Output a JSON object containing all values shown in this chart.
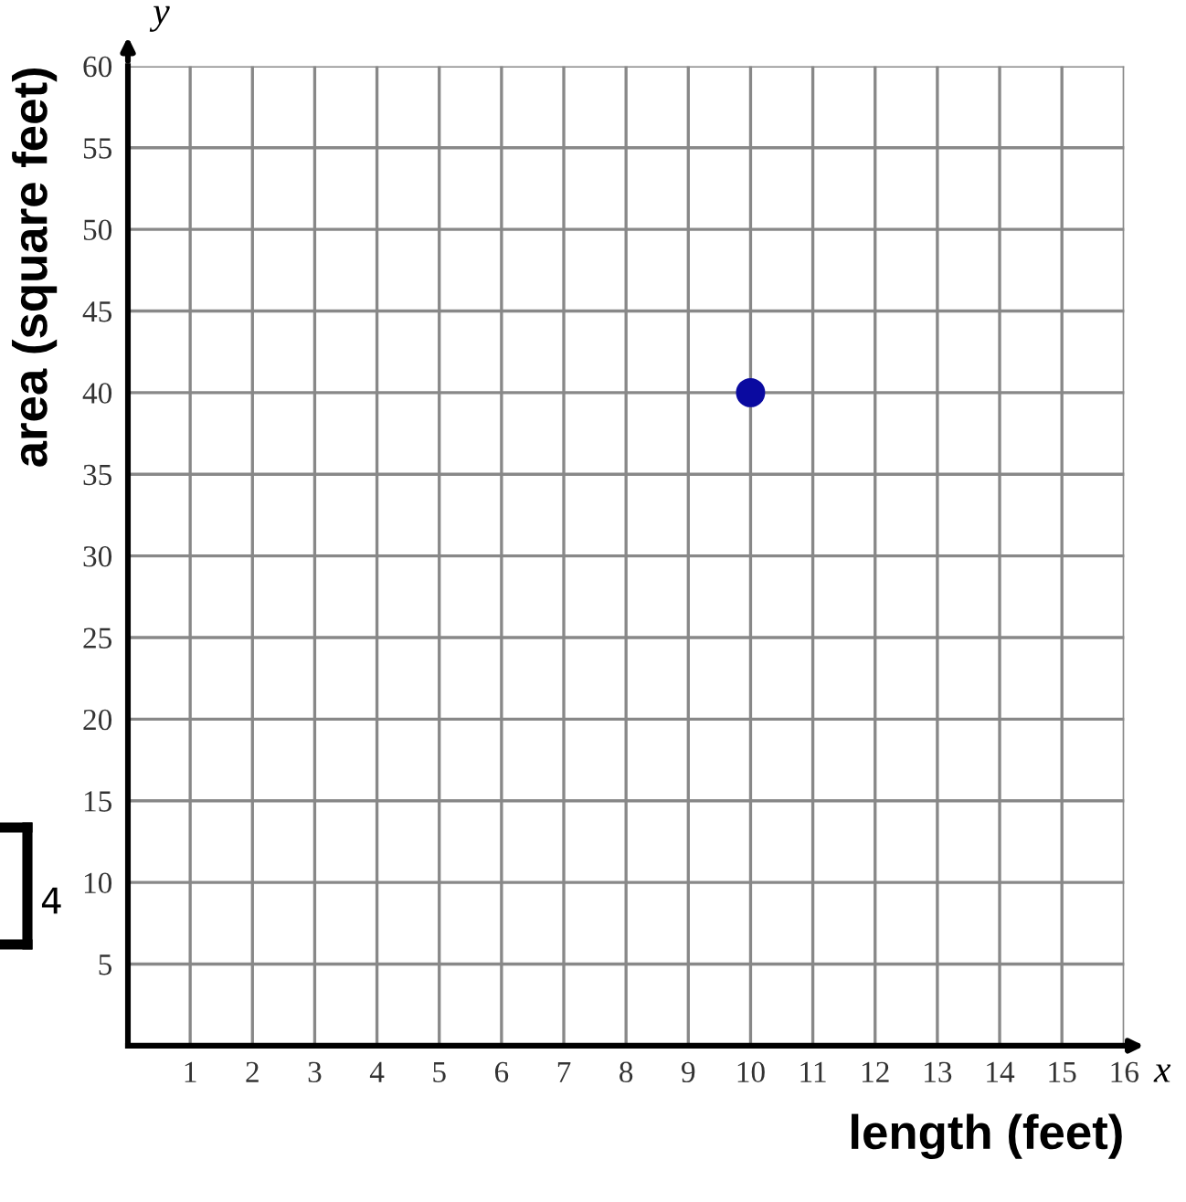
{
  "chart_data": {
    "type": "scatter",
    "xlabel": "length (feet)",
    "ylabel": "area (square feet)",
    "x": [
      10
    ],
    "values": [
      40
    ],
    "color": "#0a0aa0",
    "marker": "circle",
    "xlim": [
      0,
      16
    ],
    "ylim": [
      0,
      60
    ],
    "xticks": [
      1,
      2,
      3,
      4,
      5,
      6,
      7,
      8,
      9,
      10,
      11,
      12,
      13,
      14,
      15,
      16
    ],
    "yticks": [
      5,
      10,
      15,
      20,
      25,
      30,
      35,
      40,
      45,
      50,
      55,
      60
    ],
    "grid": true,
    "annotations": [
      "y",
      "x",
      "4"
    ]
  }
}
